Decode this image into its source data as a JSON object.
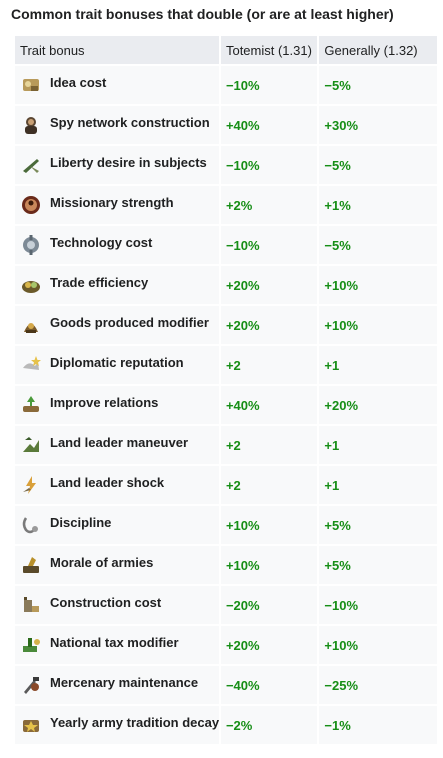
{
  "caption": "Common trait bonuses that double (or are at least higher)",
  "headers": {
    "bonus": "Trait bonus",
    "totemist": "Totemist (1.31)",
    "generally": "Generally (1.32)"
  },
  "colors": {
    "value_text": "#168e16",
    "header_bg": "#eaecf0",
    "cell_bg": "#f8f9fa"
  },
  "rows": [
    {
      "icon": "idea-cost-icon",
      "label": "Idea cost",
      "totemist": "−10%",
      "generally": "−5%"
    },
    {
      "icon": "spy-network-icon",
      "label": "Spy network construction",
      "totemist": "+40%",
      "generally": "+30%"
    },
    {
      "icon": "liberty-desire-icon",
      "label": "Liberty desire in subjects",
      "totemist": "−10%",
      "generally": "−5%"
    },
    {
      "icon": "missionary-icon",
      "label": "Missionary strength",
      "totemist": "+2%",
      "generally": "+1%"
    },
    {
      "icon": "technology-cost-icon",
      "label": "Technology cost",
      "totemist": "−10%",
      "generally": "−5%"
    },
    {
      "icon": "trade-efficiency-icon",
      "label": "Trade efficiency",
      "totemist": "+20%",
      "generally": "+10%"
    },
    {
      "icon": "goods-produced-icon",
      "label": "Goods produced modifier",
      "totemist": "+20%",
      "generally": "+10%"
    },
    {
      "icon": "diplomatic-reputation-icon",
      "label": "Diplomatic reputation",
      "totemist": "+2",
      "generally": "+1"
    },
    {
      "icon": "improve-relations-icon",
      "label": "Improve relations",
      "totemist": "+40%",
      "generally": "+20%"
    },
    {
      "icon": "land-leader-maneuver-icon",
      "label": "Land leader maneuver",
      "totemist": "+2",
      "generally": "+1"
    },
    {
      "icon": "land-leader-shock-icon",
      "label": "Land leader shock",
      "totemist": "+2",
      "generally": "+1"
    },
    {
      "icon": "discipline-icon",
      "label": "Discipline",
      "totemist": "+10%",
      "generally": "+5%"
    },
    {
      "icon": "morale-icon",
      "label": "Morale of armies",
      "totemist": "+10%",
      "generally": "+5%"
    },
    {
      "icon": "construction-cost-icon",
      "label": "Construction cost",
      "totemist": "−20%",
      "generally": "−10%"
    },
    {
      "icon": "national-tax-icon",
      "label": "National tax modifier",
      "totemist": "+20%",
      "generally": "+10%"
    },
    {
      "icon": "mercenary-maintenance-icon",
      "label": "Mercenary maintenance",
      "totemist": "−40%",
      "generally": "−25%"
    },
    {
      "icon": "army-tradition-decay-icon",
      "label": "Yearly army tradition decay",
      "totemist": "−2%",
      "generally": "−1%"
    }
  ]
}
